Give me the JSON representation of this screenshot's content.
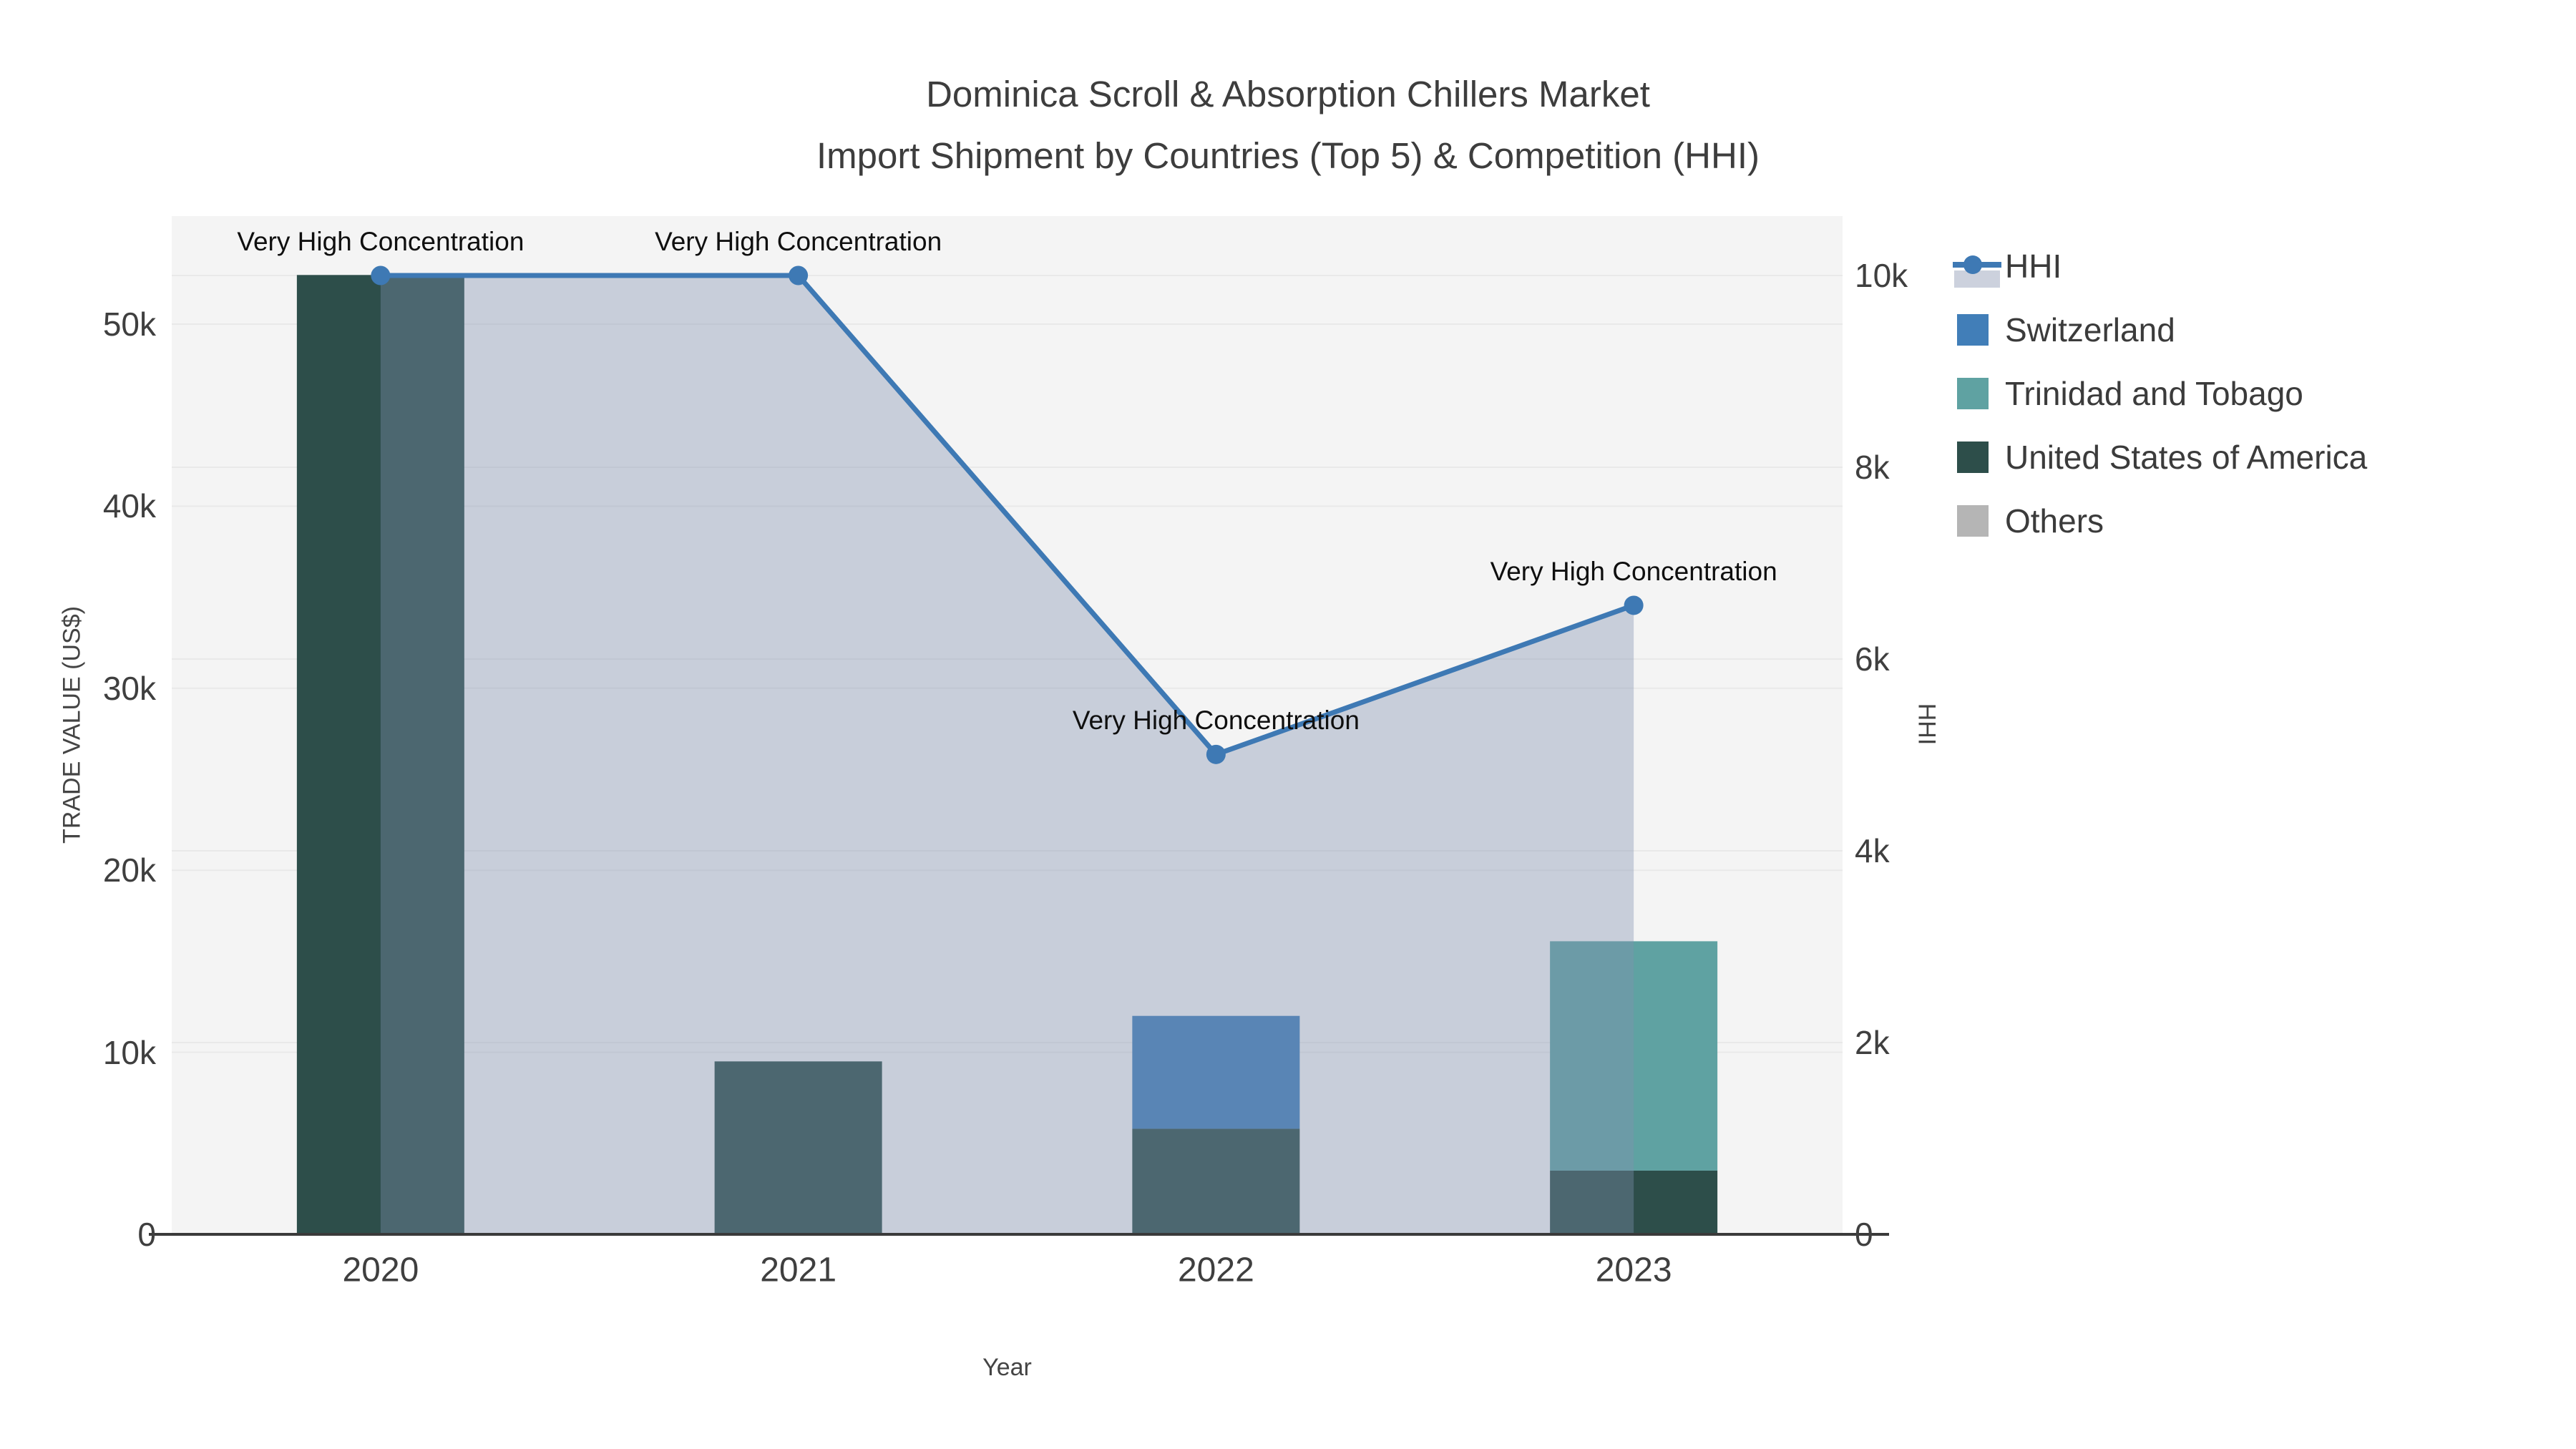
{
  "figure": {
    "title_line1": "Dominica Scroll & Absorption Chillers Market",
    "title_line2": "Import Shipment by Countries (Top 5) & Competition (HHI)"
  },
  "chart_data": {
    "type": "bar+line",
    "categories": [
      "2020",
      "2021",
      "2022",
      "2023"
    ],
    "x_axis": {
      "title": "Year"
    },
    "y_left": {
      "title": "TRADE VALUE (US$)",
      "tick_labels": [
        "0",
        "10k",
        "20k",
        "30k",
        "40k",
        "50k"
      ],
      "tick_values": [
        0,
        10000,
        20000,
        30000,
        40000,
        50000
      ],
      "max": 55900
    },
    "y_right": {
      "title": "HHI",
      "tick_labels": [
        "0",
        "2k",
        "4k",
        "6k",
        "8k",
        "10k"
      ],
      "tick_values": [
        0,
        2000,
        4000,
        6000,
        8000,
        10000
      ],
      "max": 12870
    },
    "series": [
      {
        "name": "Switzerland",
        "color": "#417eb8",
        "values": [
          0,
          0,
          6200,
          0
        ]
      },
      {
        "name": "Trinidad and Tobago",
        "color": "#5fa2a2",
        "values": [
          0,
          0,
          0,
          12600
        ]
      },
      {
        "name": "United States of America",
        "color": "#2d4e4a",
        "values": [
          52700,
          9500,
          5800,
          3500
        ]
      },
      {
        "name": "Others",
        "color": "#b5b5b5",
        "values": [
          0,
          0,
          0,
          0
        ]
      }
    ],
    "stack_order": [
      "United States of America",
      "Switzerland",
      "Trinidad and Tobago",
      "Others"
    ],
    "hhi_line": {
      "name": "HHI",
      "color": "#3e79b4",
      "area_fill": "rgba(130,145,175,0.38)",
      "legend_band_color": "#ccd1dd",
      "values": [
        10000,
        10000,
        5005,
        6560
      ]
    },
    "annotations": [
      "Very High Concentration",
      "Very High Concentration",
      "Very High Concentration",
      "Very High Concentration"
    ],
    "legend": [
      {
        "label": "HHI",
        "type": "line",
        "color": "#3e79b4"
      },
      {
        "label": "Switzerland",
        "type": "swatch",
        "color": "#417eb8"
      },
      {
        "label": "Trinidad and Tobago",
        "type": "swatch",
        "color": "#5fa2a2"
      },
      {
        "label": "United States of America",
        "type": "swatch",
        "color": "#2d4e4a"
      },
      {
        "label": "Others",
        "type": "swatch",
        "color": "#b5b5b5"
      }
    ],
    "colors": {
      "plot_background": "#f4f4f4",
      "page_background": "#ffffff",
      "grid": "#e9e9e9",
      "axis_line": "#3a3a3a",
      "title_text": "#3d3d3d",
      "tick_text": "#3f3f3f"
    }
  }
}
